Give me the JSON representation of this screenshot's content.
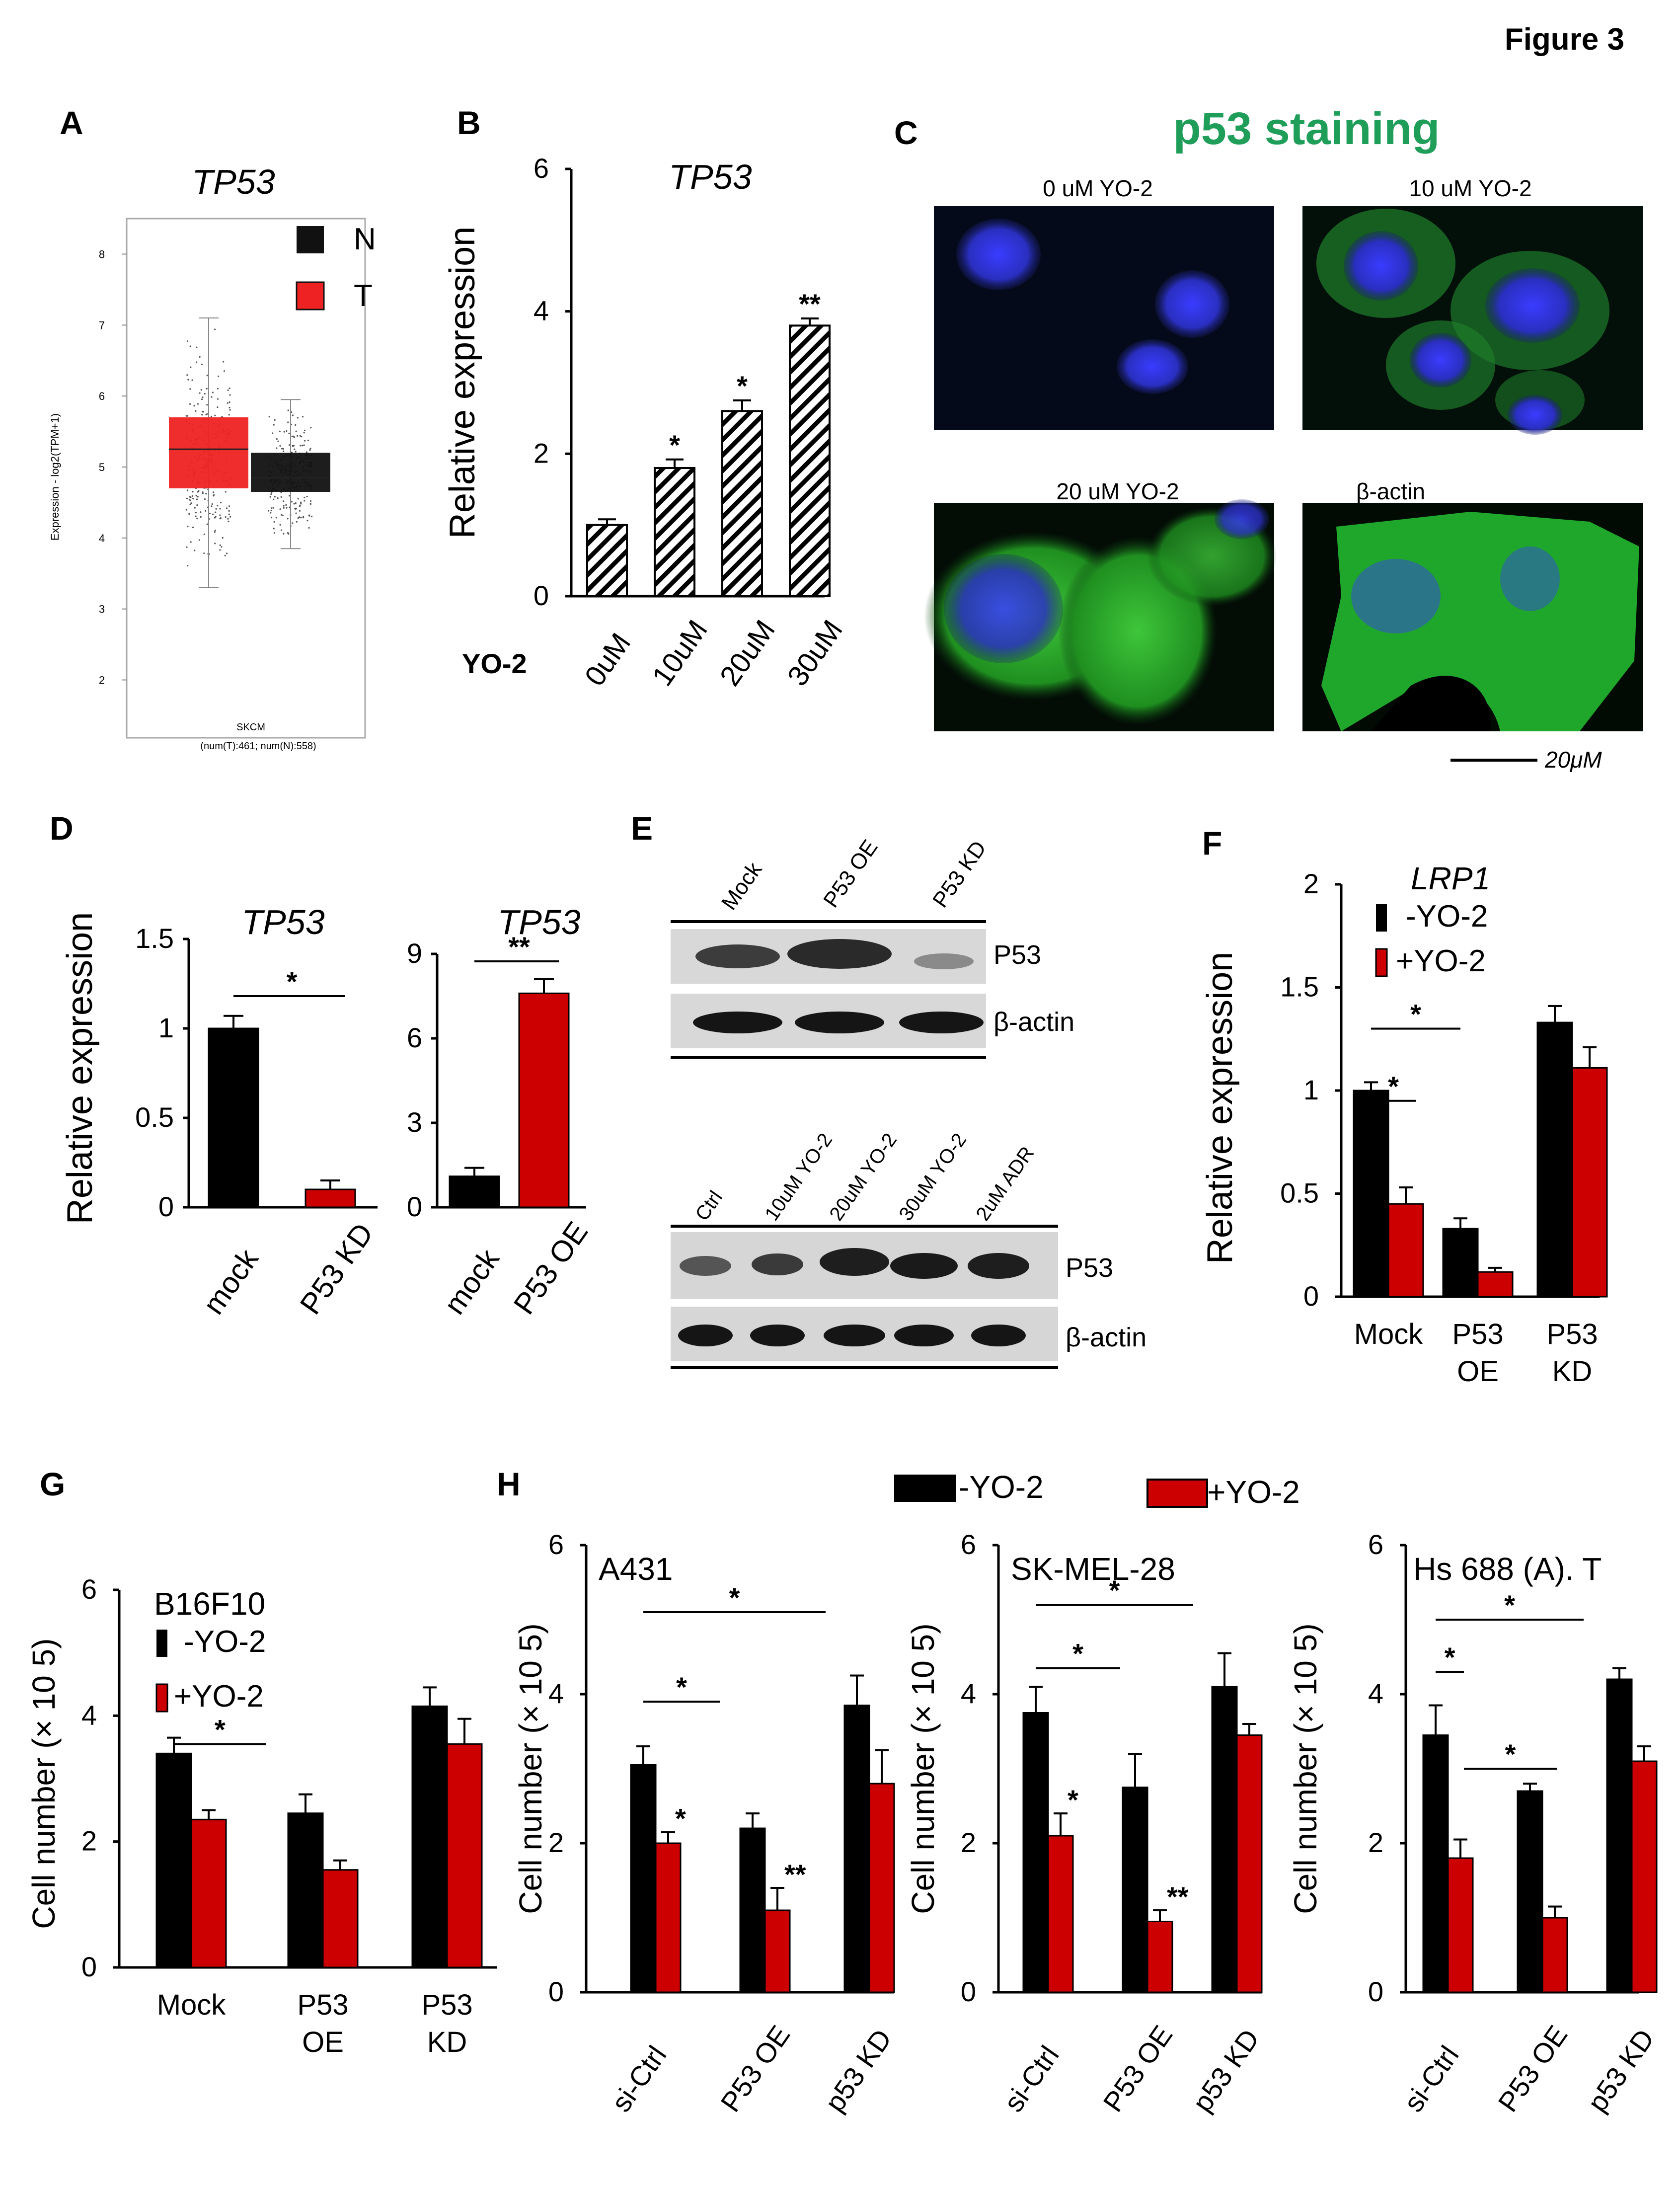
{
  "figure_label": "Figure 3",
  "panel_letters": {
    "A": "A",
    "B": "B",
    "C": "C",
    "D": "D",
    "E": "E",
    "F": "F",
    "G": "G",
    "H": "H"
  },
  "colors": {
    "black": "#000000",
    "red": "#cc0000",
    "green": "#1f9e5a",
    "blue_nuclei": "#2a32c8",
    "box_red": "#ee2222",
    "box_black": "#111111"
  },
  "panelA": {
    "title": "TP53",
    "y_axis_label": "Expression - log2(TPM+1)",
    "y_ticks": [
      "8",
      "7",
      "6",
      "5",
      "4",
      "3",
      "2"
    ],
    "legend": [
      {
        "key": "N",
        "color": "#111111"
      },
      {
        "key": "T",
        "color": "#ee2222"
      }
    ],
    "footer_line1": "SKCM",
    "footer_line2": "(num(T):461; num(N):558)"
  },
  "panelC": {
    "title": "p53 staining",
    "images": [
      {
        "label": "0 uM YO-2",
        "green_level": 0.05
      },
      {
        "label": "10 uM YO-2",
        "green_level": 0.45
      },
      {
        "label": "20 uM YO-2",
        "green_level": 0.65
      },
      {
        "label": "β-actin",
        "green_level": 0.95
      }
    ],
    "scale_label": "20μM"
  },
  "panelE": {
    "top_lanes": [
      "Mock",
      "P53 OE",
      "P53 KD"
    ],
    "top_rows": [
      "P53",
      "β-actin"
    ],
    "bottom_lanes": [
      "Ctrl",
      "10uM YO-2",
      "20uM YO-2",
      "30uM YO-2",
      "2uM ADR"
    ],
    "bottom_rows": [
      "P53",
      "β-actin"
    ]
  },
  "chart_data": [
    {
      "panel": "A",
      "type": "box",
      "title": "TP53",
      "ylabel": "Expression - log2(TPM+1)",
      "ylim": [
        1.5,
        8.5
      ],
      "series": [
        {
          "name": "T",
          "q1": 4.7,
          "median": 5.25,
          "q3": 5.7,
          "whisker_low": 3.3,
          "whisker_high": 7.1
        },
        {
          "name": "N",
          "q1": 4.65,
          "median": 4.85,
          "q3": 5.2,
          "whisker_low": 3.85,
          "whisker_high": 5.95
        }
      ]
    },
    {
      "panel": "B",
      "type": "bar",
      "title": "TP53",
      "ylabel": "Relative expression",
      "ylim": [
        0,
        6
      ],
      "yticks": [
        "0",
        "2",
        "4",
        "6"
      ],
      "x_prefix": "YO-2",
      "categories": [
        "0uM",
        "10uM",
        "20uM",
        "30uM"
      ],
      "values": [
        1.0,
        1.8,
        2.6,
        3.8
      ],
      "errors": [
        0.08,
        0.12,
        0.15,
        0.1
      ],
      "significance": [
        "",
        "*",
        "*",
        "**"
      ]
    },
    {
      "panel": "D1",
      "type": "bar",
      "title": "TP53",
      "ylabel": "Relative expression",
      "ylim": [
        0,
        1.5
      ],
      "yticks": [
        "0",
        "0.5",
        "1",
        "1.5"
      ],
      "categories": [
        "mock",
        "P53 KD"
      ],
      "values": [
        1.0,
        0.1
      ],
      "errors": [
        0.07,
        0.05
      ],
      "comparisons": [
        {
          "from": 0,
          "to": 1,
          "label": "*"
        }
      ]
    },
    {
      "panel": "D2",
      "type": "bar",
      "title": "TP53",
      "ylim": [
        0,
        9
      ],
      "yticks": [
        "0",
        "3",
        "6",
        "9"
      ],
      "categories": [
        "mock",
        "P53 OE"
      ],
      "values": [
        1.1,
        7.6
      ],
      "errors": [
        0.3,
        0.5
      ],
      "comparisons": [
        {
          "from": 0,
          "to": 1,
          "label": "**"
        }
      ]
    },
    {
      "panel": "F",
      "type": "bar",
      "title": "LRP1",
      "ylabel": "Relative expression",
      "ylim": [
        0,
        2
      ],
      "yticks": [
        "0",
        "0.5",
        "1",
        "1.5",
        "2"
      ],
      "categories": [
        "Mock",
        "P53 OE",
        "P53 KD"
      ],
      "series": [
        {
          "name": "-YO-2",
          "values": [
            1.0,
            0.33,
            1.33
          ],
          "errors": [
            0.04,
            0.05,
            0.08
          ]
        },
        {
          "name": "+YO-2",
          "values": [
            0.45,
            0.12,
            1.11
          ],
          "errors": [
            0.08,
            0.02,
            0.1
          ]
        }
      ],
      "comparisons": [
        {
          "from": 0,
          "to": 1,
          "label": "*",
          "y": 1.3
        },
        {
          "from": 0,
          "to": 0.5,
          "label": "*",
          "y": 0.95
        }
      ]
    },
    {
      "panel": "G",
      "type": "bar",
      "title": "B16F10",
      "ylabel": "Cell number (× 10 5)",
      "ylim": [
        0,
        6
      ],
      "yticks": [
        "0",
        "2",
        "4",
        "6"
      ],
      "categories": [
        "Mock",
        "P53 OE",
        "P53 KD"
      ],
      "series": [
        {
          "name": "-YO-2",
          "values": [
            3.4,
            2.45,
            4.15
          ],
          "errors": [
            0.25,
            0.3,
            0.3
          ]
        },
        {
          "name": "+YO-2",
          "values": [
            2.35,
            1.55,
            3.55
          ],
          "errors": [
            0.15,
            0.15,
            0.4
          ]
        }
      ],
      "comparisons": [
        {
          "from": 0,
          "to": 0.7,
          "label": "*",
          "y": 3.55
        }
      ]
    },
    {
      "panel": "H1",
      "type": "bar",
      "title": "A431",
      "ylabel": "Cell number (× 10 5)",
      "ylim": [
        0,
        6
      ],
      "yticks": [
        "0",
        "2",
        "4",
        "6"
      ],
      "categories": [
        "si-Ctrl",
        "P53 OE",
        "p53  KD"
      ],
      "series": [
        {
          "name": "-YO-2",
          "values": [
            3.05,
            2.2,
            3.85
          ],
          "errors": [
            0.25,
            0.2,
            0.4
          ]
        },
        {
          "name": "+YO-2",
          "values": [
            2.0,
            1.1,
            2.8
          ],
          "errors": [
            0.15,
            0.3,
            0.45
          ]
        }
      ],
      "significance_plus": [
        "*",
        "**",
        ""
      ],
      "comparisons": [
        {
          "from": 0,
          "to": 0.7,
          "label": "*",
          "y": 3.9
        },
        {
          "from": 0,
          "to": 1.7,
          "label": "*",
          "y": 5.1
        }
      ]
    },
    {
      "panel": "H2",
      "type": "bar",
      "title": "SK-MEL-28",
      "ylabel": "Cell number (× 10 5)",
      "ylim": [
        0,
        6
      ],
      "yticks": [
        "0",
        "2",
        "4",
        "6"
      ],
      "categories": [
        "si-Ctrl",
        "P53 OE",
        "p53  KD"
      ],
      "series": [
        {
          "name": "-YO-2",
          "values": [
            3.75,
            2.75,
            4.1
          ],
          "errors": [
            0.35,
            0.45,
            0.45
          ]
        },
        {
          "name": "+YO-2",
          "values": [
            2.1,
            0.95,
            3.45
          ],
          "errors": [
            0.3,
            0.15,
            0.15
          ]
        }
      ],
      "significance_plus": [
        "*",
        "**",
        ""
      ],
      "comparisons": [
        {
          "from": 0,
          "to": 0.85,
          "label": "*",
          "y": 4.35
        },
        {
          "from": 0,
          "to": 1.65,
          "label": "*",
          "y": 5.2
        }
      ]
    },
    {
      "panel": "H3",
      "type": "bar",
      "title": "Hs 688 (A). T",
      "ylabel": "Cell number (× 10 5)",
      "ylim": [
        0,
        6
      ],
      "yticks": [
        "0",
        "2",
        "4",
        "6"
      ],
      "categories": [
        "si-Ctrl",
        "P53 OE",
        "p53 KD"
      ],
      "series": [
        {
          "name": "-YO-2",
          "values": [
            3.45,
            2.7,
            4.2
          ],
          "errors": [
            0.4,
            0.1,
            0.15
          ]
        },
        {
          "name": "+YO-2",
          "values": [
            1.8,
            1.0,
            3.1
          ],
          "errors": [
            0.25,
            0.15,
            0.2
          ]
        }
      ],
      "comparisons": [
        {
          "from": 0,
          "to": 0.3,
          "label": "*",
          "y": 4.3
        },
        {
          "from": 0,
          "to": 1.6,
          "label": "*",
          "y": 5.0
        },
        {
          "from": 0.3,
          "to": 1.3,
          "label": "*",
          "y": 3.0
        }
      ]
    }
  ],
  "legend_H": [
    {
      "name": "-YO-2",
      "color": "#000000"
    },
    {
      "name": "+YO-2",
      "color": "#cc0000"
    }
  ]
}
